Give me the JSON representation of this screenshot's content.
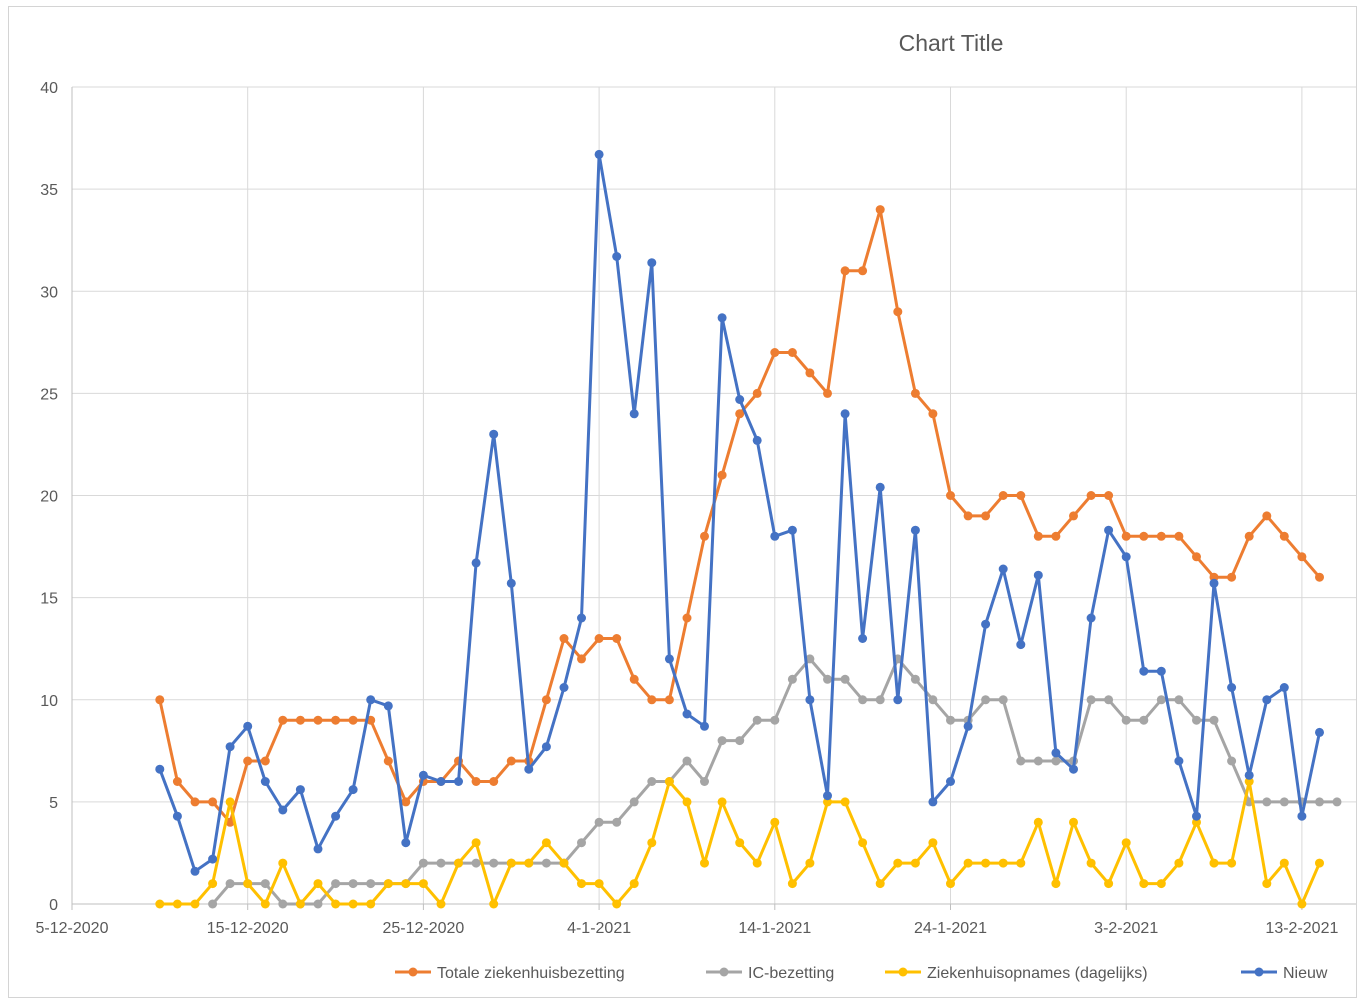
{
  "chart_data": {
    "type": "line",
    "title": "Chart Title",
    "xlabel": "",
    "ylabel": "",
    "ylim": [
      0,
      40
    ],
    "y_ticks": [
      "0",
      "5",
      "10",
      "15",
      "20",
      "25",
      "30",
      "35",
      "40"
    ],
    "x_tick_labels": [
      "5-12-2020",
      "15-12-2020",
      "25-12-2020",
      "4-1-2021",
      "14-1-2021",
      "24-1-2021",
      "3-2-2021",
      "13-2-2021"
    ],
    "x_start_date": "2020-12-05",
    "x_end_date": "2021-02-16",
    "x_start_visible": "2020-12-10",
    "grid": true,
    "legend_position": "bottom",
    "series": [
      {
        "name": "Totale ziekenhuisbezetting",
        "color": "#ED7D31",
        "values": [
          10,
          6,
          5,
          5,
          4,
          7,
          7,
          9,
          9,
          9,
          9,
          9,
          9,
          7,
          5,
          6,
          6,
          7,
          6,
          6,
          7,
          7,
          10,
          13,
          12,
          13,
          13,
          11,
          10,
          10,
          14,
          18,
          21,
          24,
          25,
          27,
          27,
          26,
          25,
          31,
          31,
          34,
          29,
          25,
          24,
          20,
          19,
          19,
          20,
          20,
          18,
          18,
          19,
          20,
          20,
          18,
          18,
          18,
          18,
          17,
          16,
          16,
          18,
          19,
          18,
          17,
          16
        ]
      },
      {
        "name": "IC-bezetting",
        "color": "#A5A5A5",
        "start_offset": 3,
        "values": [
          0,
          1,
          1,
          1,
          0,
          0,
          0,
          1,
          1,
          1,
          1,
          1,
          2,
          2,
          2,
          2,
          2,
          2,
          2,
          2,
          2,
          3,
          4,
          4,
          5,
          6,
          6,
          7,
          6,
          8,
          8,
          9,
          9,
          11,
          12,
          11,
          11,
          10,
          10,
          12,
          11,
          10,
          9,
          9,
          10,
          10,
          7,
          7,
          7,
          7,
          10,
          10,
          9,
          9,
          10,
          10,
          9,
          9,
          7,
          5,
          5,
          5,
          5,
          5,
          5
        ]
      },
      {
        "name": "Ziekenhuisopnames (dagelijks)",
        "color": "#FFC000",
        "values": [
          0,
          0,
          0,
          1,
          5,
          1,
          0,
          2,
          0,
          1,
          0,
          0,
          0,
          1,
          1,
          1,
          0,
          2,
          3,
          0,
          2,
          2,
          3,
          2,
          1,
          1,
          0,
          1,
          3,
          6,
          5,
          2,
          5,
          3,
          2,
          4,
          1,
          2,
          5,
          5,
          3,
          1,
          2,
          2,
          3,
          1,
          2,
          2,
          2,
          2,
          4,
          1,
          4,
          2,
          1,
          3,
          1,
          1,
          2,
          4,
          2,
          2,
          6,
          1,
          2,
          0,
          2
        ]
      },
      {
        "name": "Nieuw",
        "color": "#4472C4",
        "values": [
          6.6,
          4.3,
          1.6,
          2.2,
          7.7,
          8.7,
          6.0,
          4.6,
          5.6,
          2.7,
          4.3,
          5.6,
          10,
          9.7,
          3.0,
          6.3,
          6.0,
          6.0,
          16.7,
          23,
          15.7,
          6.6,
          7.7,
          10.6,
          14,
          36.7,
          31.7,
          24,
          31.4,
          12,
          9.3,
          8.7,
          28.7,
          24.7,
          22.7,
          18,
          18.3,
          10,
          5.3,
          24,
          13,
          20.4,
          10,
          18.3,
          5,
          6,
          8.7,
          13.7,
          16.4,
          12.7,
          16.1,
          7.4,
          6.6,
          14,
          18.3,
          17,
          11.4,
          11.4,
          7,
          4.3,
          15.7,
          10.6,
          6.3,
          10,
          10.6,
          4.3,
          8.4
        ]
      }
    ]
  }
}
